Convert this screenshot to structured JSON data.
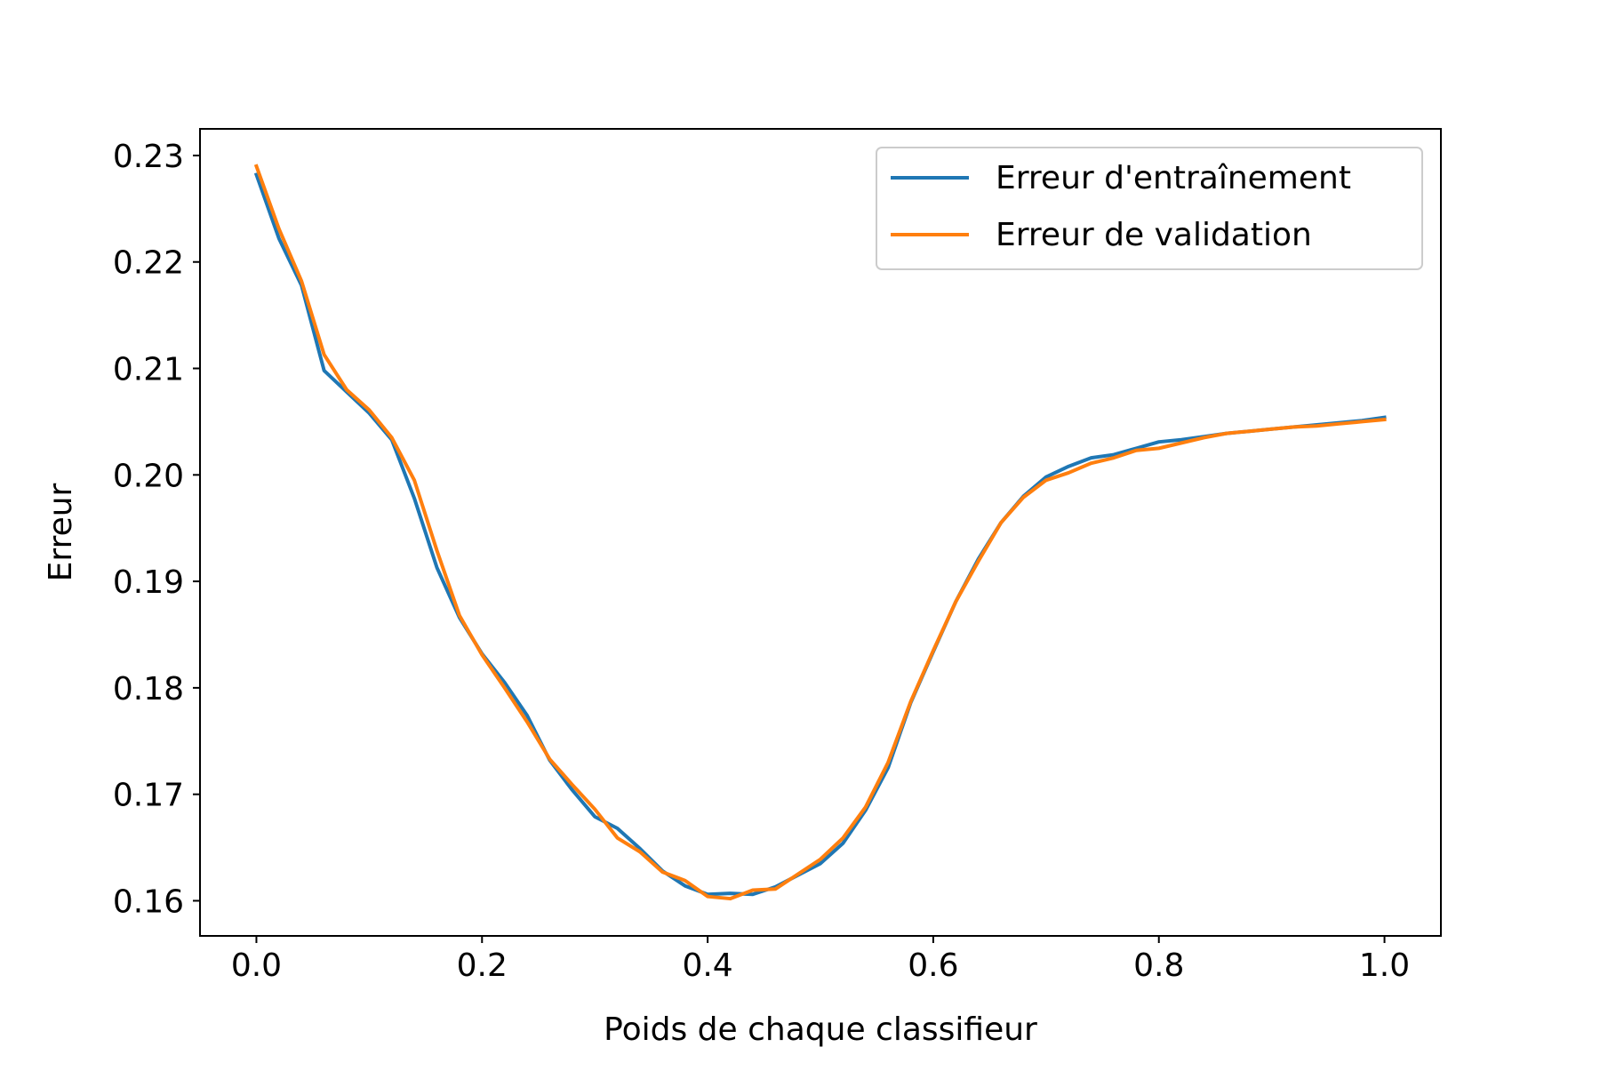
{
  "chart_data": {
    "type": "line",
    "title": "",
    "xlabel": "Poids de chaque classifieur",
    "ylabel": "Erreur",
    "xlim": [
      -0.05,
      1.05
    ],
    "ylim": [
      0.1567,
      0.2325
    ],
    "x_ticks": [
      0.0,
      0.2,
      0.4,
      0.6,
      0.8,
      1.0
    ],
    "x_tick_labels": [
      "0.0",
      "0.2",
      "0.4",
      "0.6",
      "0.8",
      "1.0"
    ],
    "y_ticks": [
      0.16,
      0.17,
      0.18,
      0.19,
      0.2,
      0.21,
      0.22,
      0.23
    ],
    "y_tick_labels": [
      "0.16",
      "0.17",
      "0.18",
      "0.19",
      "0.20",
      "0.21",
      "0.22",
      "0.23"
    ],
    "grid": false,
    "legend_position": "top-right",
    "x": [
      0.0,
      0.02,
      0.04,
      0.06,
      0.08,
      0.1,
      0.12,
      0.14,
      0.16,
      0.18,
      0.2,
      0.22,
      0.24,
      0.26,
      0.28,
      0.3,
      0.32,
      0.34,
      0.36,
      0.38,
      0.4,
      0.42,
      0.44,
      0.46,
      0.48,
      0.5,
      0.52,
      0.54,
      0.56,
      0.58,
      0.6,
      0.62,
      0.64,
      0.66,
      0.68,
      0.7,
      0.72,
      0.74,
      0.76,
      0.78,
      0.8,
      0.82,
      0.84,
      0.86,
      0.88,
      0.9,
      0.92,
      0.94,
      0.96,
      0.98,
      1.0
    ],
    "series": [
      {
        "name": "Erreur d'entraînement",
        "color": "#1f77b4",
        "values": [
          0.2282,
          0.2222,
          0.2178,
          0.2098,
          0.2078,
          0.2058,
          0.2033,
          0.1978,
          0.1913,
          0.1866,
          0.1832,
          0.1805,
          0.1774,
          0.1732,
          0.1704,
          0.1679,
          0.1668,
          0.1649,
          0.1628,
          0.1614,
          0.1606,
          0.1607,
          0.1606,
          0.1613,
          0.1624,
          0.1635,
          0.1654,
          0.1685,
          0.1725,
          0.1786,
          0.1834,
          0.1881,
          0.1921,
          0.1955,
          0.198,
          0.1998,
          0.2008,
          0.2016,
          0.2019,
          0.2025,
          0.2031,
          0.2033,
          0.2036,
          0.2039,
          0.2041,
          0.2043,
          0.2045,
          0.2047,
          0.2049,
          0.2051,
          0.2054
        ]
      },
      {
        "name": "Erreur de validation",
        "color": "#ff7f0e",
        "values": [
          0.229,
          0.2231,
          0.2182,
          0.2113,
          0.208,
          0.2061,
          0.2035,
          0.1995,
          0.1929,
          0.1868,
          0.1831,
          0.18,
          0.1768,
          0.1733,
          0.1709,
          0.1686,
          0.1659,
          0.1646,
          0.1627,
          0.1619,
          0.1604,
          0.1602,
          0.161,
          0.1611,
          0.1625,
          0.1639,
          0.1659,
          0.1688,
          0.173,
          0.1787,
          0.1835,
          0.1881,
          0.1919,
          0.1955,
          0.1979,
          0.1995,
          0.2002,
          0.2011,
          0.2016,
          0.2023,
          0.2025,
          0.203,
          0.2035,
          0.2039,
          0.2041,
          0.2043,
          0.2045,
          0.2046,
          0.2048,
          0.205,
          0.2052
        ]
      }
    ]
  }
}
